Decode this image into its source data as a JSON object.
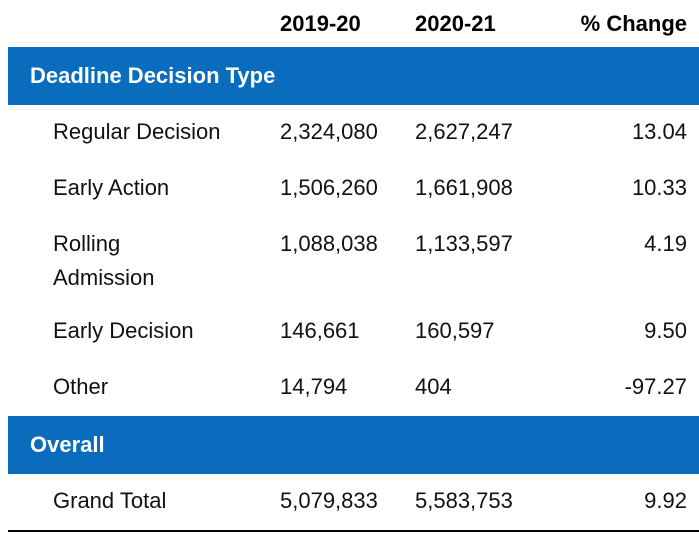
{
  "table": {
    "columns": [
      "2019-20",
      "2020-21",
      "% Change"
    ],
    "sections": [
      {
        "header": "Deadline Decision Type",
        "rows": [
          {
            "label": "Regular Decision",
            "v1": "2,324,080",
            "v2": "2,627,247",
            "change": "13.04",
            "wrap": false
          },
          {
            "label": "Early Action",
            "v1": "1,506,260",
            "v2": "1,661,908",
            "change": "10.33",
            "wrap": false
          },
          {
            "label": "Rolling Admission",
            "v1": "1,088,038",
            "v2": "1,133,597",
            "change": "4.19",
            "wrap": true
          },
          {
            "label": "Early Decision",
            "v1": "146,661",
            "v2": "160,597",
            "change": "9.50",
            "wrap": false
          },
          {
            "label": "Other",
            "v1": "14,794",
            "v2": "404",
            "change": "-97.27",
            "wrap": false
          }
        ]
      },
      {
        "header": "Overall",
        "rows": [
          {
            "label": "Grand Total",
            "v1": "5,079,833",
            "v2": "5,583,753",
            "change": "9.92",
            "wrap": false
          }
        ]
      }
    ],
    "colors": {
      "band_background": "#096cbd",
      "band_text": "#ffffff",
      "body_text": "#111111",
      "bottom_rule": "#000000"
    }
  },
  "chart_data": {
    "type": "table",
    "columns": [
      "Deadline Decision Type",
      "2019-20",
      "2020-21",
      "% Change"
    ],
    "sections": [
      {
        "header": "Deadline Decision Type",
        "rows": [
          [
            "Regular Decision",
            2324080,
            2627247,
            13.04
          ],
          [
            "Early Action",
            1506260,
            1661908,
            10.33
          ],
          [
            "Rolling Admission",
            1088038,
            1133597,
            4.19
          ],
          [
            "Early Decision",
            146661,
            160597,
            9.5
          ],
          [
            "Other",
            14794,
            404,
            -97.27
          ]
        ]
      },
      {
        "header": "Overall",
        "rows": [
          [
            "Grand Total",
            5079833,
            5583753,
            9.92
          ]
        ]
      }
    ],
    "layout": {
      "section_band_color": "#096cbd",
      "grid": false,
      "value_alignment": [
        "left",
        "left",
        "right"
      ]
    }
  }
}
